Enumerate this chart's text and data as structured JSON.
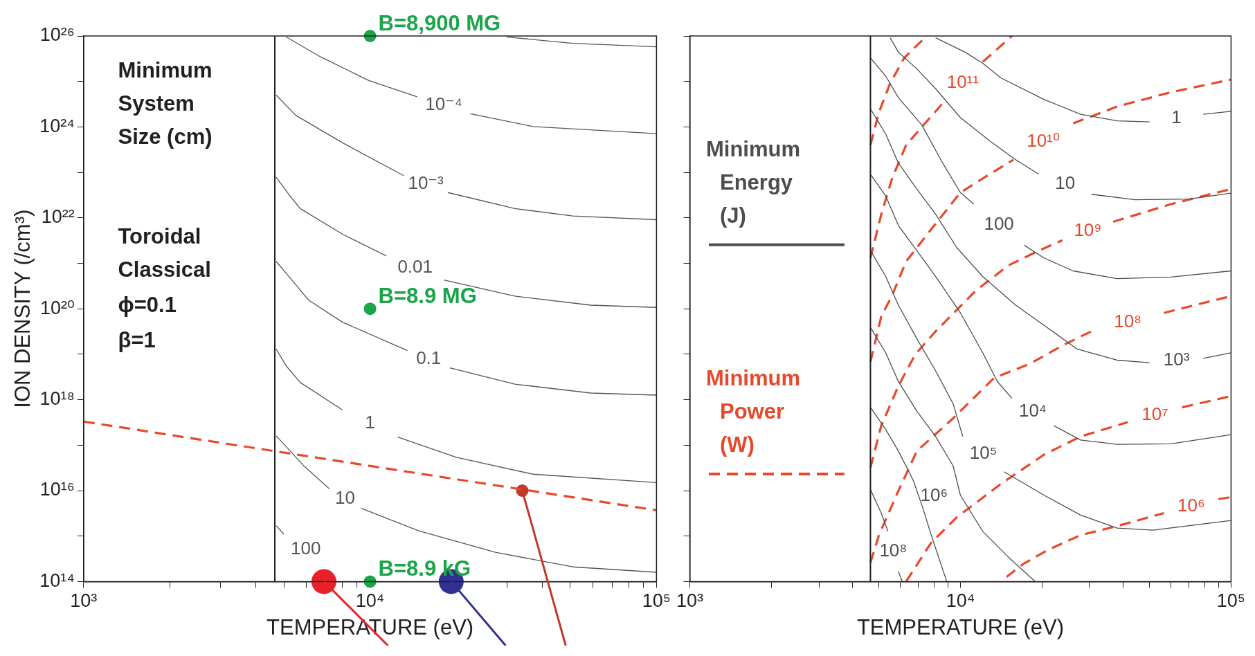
{
  "chart_data": [
    {
      "type": "line",
      "xlabel": "TEMPERATURE (eV)",
      "ylabel": "ION DENSITY (/cm³)",
      "log": "xy",
      "grid": false,
      "marker": "none",
      "xlim": [
        1000,
        100000
      ],
      "ylim": [
        100000000000000.0,
        1e+26
      ],
      "xticks": [
        {
          "value": 1000,
          "label": "10³"
        },
        {
          "value": 2000,
          "label": null
        },
        {
          "value": 3000,
          "label": null
        },
        {
          "value": 4000,
          "label": null
        },
        {
          "value": 5000,
          "label": null
        },
        {
          "value": 6000,
          "label": null
        },
        {
          "value": 7000,
          "label": null
        },
        {
          "value": 8000,
          "label": null
        },
        {
          "value": 9000,
          "label": null
        },
        {
          "value": 10000,
          "label": "10⁴"
        },
        {
          "value": 20000,
          "label": null
        },
        {
          "value": 30000,
          "label": null
        },
        {
          "value": 40000,
          "label": null
        },
        {
          "value": 50000,
          "label": null
        },
        {
          "value": 60000,
          "label": null
        },
        {
          "value": 70000,
          "label": null
        },
        {
          "value": 80000,
          "label": null
        },
        {
          "value": 90000,
          "label": null
        },
        {
          "value": 100000,
          "label": "10⁵"
        }
      ],
      "yticks": [
        {
          "value": 100000000000000.0,
          "label": "10¹⁴"
        },
        {
          "value": 1000000000000000.0,
          "label": null
        },
        {
          "value": 1e+16,
          "label": "10¹⁶"
        },
        {
          "value": 1e+17,
          "label": null
        },
        {
          "value": 1e+18,
          "label": "10¹⁸"
        },
        {
          "value": 1e+19,
          "label": null
        },
        {
          "value": 1e+20,
          "label": "10²⁰"
        },
        {
          "value": 1e+21,
          "label": null
        },
        {
          "value": 1e+22,
          "label": "10²²"
        },
        {
          "value": 1e+23,
          "label": null
        },
        {
          "value": 1e+24,
          "label": "10²⁴"
        },
        {
          "value": 1e+25,
          "label": null
        },
        {
          "value": 1e+26,
          "label": "10²⁶"
        }
      ],
      "ref_lines": [
        {
          "axis": "x",
          "value": 4650,
          "color": "#231f20"
        }
      ],
      "series": [
        {
          "color": "#555555",
          "x": [
            30000,
            51000,
            100000
          ],
          "values": [
            9.5e+25,
            6.9e+25,
            5.8e+25
          ]
        },
        {
          "color": "#555555",
          "x": [
            5100,
            6700,
            9900,
            14600,
            18000,
            22400,
            37000,
            100000
          ],
          "values": [
            9.5e+25,
            3.5e+25,
            1.05e+25,
            4.6e+24,
            null,
            1.95e+24,
            1.02e+24,
            7.1e+23
          ]
        },
        {
          "color": "#555555",
          "x": [
            4700,
            5500,
            8000,
            13100,
            15000,
            18700,
            32000,
            51000,
            100000
          ],
          "values": [
            5e+24,
            1.8e+24,
            4.5e+23,
            8.5e+22,
            null,
            3.6e+22,
            1.6e+22,
            1.1e+22,
            9.1e+21
          ]
        },
        {
          "color": "#555555",
          "x": [
            4700,
            5200,
            5700,
            8000,
            11400,
            14300,
            18100,
            32000,
            59000,
            100000
          ],
          "values": [
            7.8e+22,
            3.3e+22,
            1.6e+22,
            4.4e+21,
            1.45e+21,
            null,
            4.3e+20,
            1.9e+20,
            1.2e+20,
            1.07e+20
          ]
        },
        {
          "color": "#555555",
          "x": [
            4700,
            5400,
            6100,
            8000,
            13500,
            16000,
            19000,
            32000,
            59000,
            100000
          ],
          "values": [
            1.1e+21,
            3.9e+20,
            1.55e+20,
            5.1e+19,
            1.2e+19,
            null,
            5e+18,
            2.2e+18,
            1.4e+18,
            1.26e+18
          ]
        },
        {
          "color": "#555555",
          "x": [
            4700,
            5100,
            5700,
            8000,
            10000,
            12500,
            20000,
            37000,
            100000
          ],
          "values": [
            1.3e+19,
            5.5e+18,
            2.4e+18,
            6e+17,
            null,
            1.5e+17,
            5.4e+16,
            2.3e+16,
            1.5e+16
          ]
        },
        {
          "color": "#555555",
          "x": [
            4700,
            5300,
            5900,
            7200,
            8200,
            9300,
            14800,
            27400,
            51000,
            100000
          ],
          "values": [
            1.6e+17,
            7.1e+16,
            3.4e+16,
            1.1e+16,
            null,
            4100000000000000.0,
            1300000000000000.0,
            440000000000000.0,
            210000000000000.0,
            160000000000000.0
          ]
        },
        {
          "color": "#555555",
          "x": [
            4700,
            5000
          ],
          "values": [
            1700000000000000.0,
            1100000000000000.0
          ]
        },
        {
          "color": "#e8482a",
          "line_style": "dashed",
          "x": [
            1000,
            100000
          ],
          "values": [
            3.3e+17,
            3700000000000000.0
          ]
        },
        {
          "type": "scatter",
          "marker": "circle",
          "color": "#1aa54a",
          "x": [
            10000,
            10000,
            10000
          ],
          "values": [
            1e+26,
            1e+20,
            100000000000000.0
          ]
        },
        {
          "type": "scatter",
          "marker": "circle",
          "color": "#e8202a",
          "x": [
            6900
          ],
          "values": [
            100000000000000.0
          ]
        },
        {
          "type": "scatter",
          "marker": "circle",
          "color": "#2e3192",
          "x": [
            19200
          ],
          "values": [
            100000000000000.0
          ]
        },
        {
          "type": "scatter",
          "marker": "circle",
          "color": "#c0392b",
          "x": [
            34000
          ],
          "values": [
            1e+16
          ]
        }
      ],
      "annotations": [
        "Minimum System Size (cm)",
        "Toroidal Classical",
        "ϕ=0.1",
        "β=1",
        {
          "text": "B=8,900 MG",
          "x": 10000,
          "y": 1e+26
        },
        {
          "text": "B=8.9 MG",
          "x": 10000,
          "y": 1e+20
        },
        {
          "text": "B=8.9 kG",
          "x": 10000,
          "y": 100000000000000.0
        },
        {
          "text": "10⁻⁴",
          "x": 14600,
          "y": 4.6e+24
        },
        {
          "text": "10⁻³",
          "x": 13100,
          "y": 8.5e+22
        },
        {
          "text": "0.01",
          "x": 11400,
          "y": 1.45e+21
        },
        {
          "text": "0.1",
          "x": 13500,
          "y": 1.2e+19
        },
        {
          "text": "1",
          "x": 8000,
          "y": 6e+17
        },
        {
          "text": "10",
          "x": 7200,
          "y": 1.1e+16
        },
        {
          "text": "100",
          "x": 5000,
          "y": 1100000000000000.0
        }
      ]
    },
    {
      "type": "line",
      "xlabel": "TEMPERATURE (eV)",
      "log": "xy",
      "grid": false,
      "marker": "none",
      "tick_labels": "x",
      "legend": "left",
      "xlim": [
        1000,
        100000
      ],
      "ylim": [
        100000000000000.0,
        1e+26
      ],
      "xticks": [
        {
          "value": 1000,
          "label": "10³"
        },
        {
          "value": 2000,
          "label": null
        },
        {
          "value": 3000,
          "label": null
        },
        {
          "value": 4000,
          "label": null
        },
        {
          "value": 5000,
          "label": null
        },
        {
          "value": 6000,
          "label": null
        },
        {
          "value": 7000,
          "label": null
        },
        {
          "value": 8000,
          "label": null
        },
        {
          "value": 9000,
          "label": null
        },
        {
          "value": 10000,
          "label": "10⁴"
        },
        {
          "value": 20000,
          "label": null
        },
        {
          "value": 30000,
          "label": null
        },
        {
          "value": 40000,
          "label": null
        },
        {
          "value": 50000,
          "label": null
        },
        {
          "value": 60000,
          "label": null
        },
        {
          "value": 70000,
          "label": null
        },
        {
          "value": 80000,
          "label": null
        },
        {
          "value": 90000,
          "label": null
        },
        {
          "value": 100000,
          "label": "10⁵"
        }
      ],
      "yticks": [
        {
          "value": 100000000000000.0,
          "label": null
        },
        {
          "value": 1000000000000000.0,
          "label": null
        },
        {
          "value": 1e+16,
          "label": null
        },
        {
          "value": 1e+17,
          "label": null
        },
        {
          "value": 1e+18,
          "label": null
        },
        {
          "value": 1e+19,
          "label": null
        },
        {
          "value": 1e+20,
          "label": null
        },
        {
          "value": 1e+21,
          "label": null
        },
        {
          "value": 1e+22,
          "label": null
        },
        {
          "value": 1e+23,
          "label": null
        },
        {
          "value": 1e+24,
          "label": null
        },
        {
          "value": 1e+25,
          "label": null
        },
        {
          "value": 1e+26,
          "label": null
        }
      ],
      "ref_lines": [
        {
          "axis": "x",
          "value": 4650,
          "color": "#231f20"
        }
      ],
      "series": [
        {
          "name": "Minimum Energy (J)",
          "color": "#4d4d4d",
          "x": [
            8100,
            10400,
            12100,
            14100,
            20400,
            27800,
            37900,
            50000,
            63000,
            79000,
            100000
          ],
          "values": [
            9.1e+25,
            4.4e+25,
            2.5e+25,
            1.2e+25,
            4e+24,
            1.9e+24,
            1.36e+24,
            1.29e+24,
            null,
            1.9e+24,
            2.2e+24
          ]
        },
        {
          "color": "#4d4d4d",
          "x": [
            5500,
            5900,
            6900,
            8100,
            10000,
            12900,
            16000,
            19500,
            23100,
            30500,
            44200,
            70000,
            100000
          ],
          "values": [
            9.1e+25,
            4.4e+25,
            1.9e+25,
            6.9e+24,
            1.6e+24,
            4.8e+23,
            1.9e+23,
            9.1e+22,
            null,
            3.3e+22,
            2.5e+22,
            2.6e+22,
            3.5e+22
          ]
        },
        {
          "color": "#4d4d4d",
          "x": [
            4650,
            5300,
            5900,
            7200,
            8600,
            10000,
            11200,
            13500,
            17200,
            20400,
            26100,
            37900,
            60000,
            100000
          ],
          "values": [
            3.3e+25,
            1.3e+25,
            4.4e+24,
            1.1e+24,
            1.6e+23,
            3.6e+22,
            2e+22,
            null,
            2.5e+21,
            1.3e+21,
            6.8e+20,
            4.6e+20,
            5e+20,
            6.8e+20
          ]
        },
        {
          "color": "#4d4d4d",
          "x": [
            4650,
            5300,
            5900,
            6900,
            8100,
            9700,
            12100,
            16000,
            20400,
            27000,
            37900,
            50000,
            63000,
            79000,
            100000
          ],
          "values": [
            2.5e+24,
            6.9e+23,
            1.6e+23,
            4.3e+22,
            1.2e+22,
            2.2e+21,
            5.1e+20,
            1.2e+20,
            4.3e+19,
            1.3e+19,
            7.4e+18,
            6.5e+18,
            null,
            8.1e+18,
            1.07e+19
          ]
        },
        {
          "color": "#4d4d4d",
          "x": [
            4650,
            5300,
            5900,
            6900,
            8100,
            10000,
            12100,
            13700,
            15500,
            19500,
            22100,
            27800,
            37900,
            60000,
            100000
          ],
          "values": [
            9.1e+22,
            3e+22,
            6.8e+21,
            1.9e+21,
            5.1e+20,
            8.1e+19,
            1.07e+19,
            2.5e+18,
            1.07e+18,
            null,
            2.7e+17,
            1.3e+17,
            1.04e+17,
            1.07e+17,
            1.7e+17
          ]
        },
        {
          "color": "#4d4d4d",
          "x": [
            4650,
            5300,
            5900,
            6900,
            8100,
            9400,
            10200,
            12500,
            14500,
            20400,
            27800,
            37900,
            51500,
            100000
          ],
          "values": [
            1.9e+21,
            5.1e+20,
            1.2e+20,
            2.2e+19,
            4.3e+18,
            8.1e+17,
            1.55e+17,
            null,
            2.6e+16,
            7900000000000000.0,
            2900000000000000.0,
            1500000000000000.0,
            1350000000000000.0,
            2200000000000000.0
          ]
        },
        {
          "color": "#4d4d4d",
          "x": [
            4650,
            5300,
            5900,
            6900,
            8100,
            9400,
            10000,
            12100,
            15000,
            18900
          ],
          "values": [
            3.9e+19,
            1.07e+19,
            2.5e+18,
            5.6e+17,
            1.55e+17,
            3.5e+16,
            7900000000000000.0,
            1260000000000000.0,
            350000000000000.0,
            100000000000000.0
          ]
        },
        {
          "color": "#4d4d4d",
          "x": [
            4650,
            5300,
            5900,
            6700,
            7300,
            7800,
            8900
          ],
          "values": [
            6.8e+17,
            2.2e+17,
            7.4e+16,
            1.66e+16,
            3800000000000000.0,
            1050000000000000.0,
            100000000000000.0
          ]
        },
        {
          "color": "#4d4d4d",
          "x": [
            4650,
            5100,
            5400,
            5700,
            5900,
            6100
          ],
          "values": [
            1.05e+16,
            3200000000000000.0,
            1260000000000000.0,
            null,
            166000000000000.0,
            100000000000000.0
          ]
        },
        {
          "name": "Minimum Power (W)",
          "color": "#e8482a",
          "line_style": "dashed",
          "x": [
            4650,
            5000,
            5500,
            6200,
            7500
          ],
          "values": [
            4e+23,
            2.1e+24,
            9.1e+24,
            3.3e+25,
            1e+26
          ]
        },
        {
          "color": "#e8482a",
          "line_style": "dashed",
          "x": [
            4650,
            5100,
            5600,
            6300,
            7400,
            8600,
            10900,
            12100,
            15500
          ],
          "values": [
            1.3e+21,
            1.2e+22,
            7.6e+22,
            4e+23,
            1.2e+24,
            3.3e+24,
            null,
            2.7e+25,
            1e+26
          ]
        },
        {
          "color": "#e8482a",
          "line_style": "dashed",
          "x": [
            4650,
            5100,
            5600,
            6300,
            7800,
            10000,
            12500,
            15700,
            20700,
            26100,
            37900,
            60000,
            100000
          ],
          "values": [
            6.8e+18,
            6.8e+19,
            2e+20,
            1.1e+21,
            5.6e+21,
            3.6e+22,
            8.3e+22,
            1.9e+23,
            null,
            1.2e+24,
            2.8e+24,
            5.8e+24,
            1.1e+25
          ]
        },
        {
          "color": "#e8482a",
          "line_style": "dashed",
          "x": [
            4650,
            5100,
            5900,
            6800,
            8100,
            11400,
            15000,
            19500,
            23800,
            27800,
            36700,
            60000,
            100000
          ],
          "values": [
            3.2e+16,
            2.7e+17,
            2e+18,
            9.8e+18,
            3.2e+19,
            2.5e+20,
            8.9e+20,
            1.9e+21,
            3.2e+21,
            null,
            8.2e+21,
            2e+22,
            4.3e+22
          ]
        },
        {
          "color": "#e8482a",
          "line_style": "dashed",
          "x": [
            4650,
            5000,
            5800,
            6900,
            9400,
            13300,
            18100,
            23800,
            30500,
            42800,
            56500,
            100000
          ],
          "values": [
            260000000000000.0,
            1050000000000000.0,
            7900000000000000.0,
            7.4e+16,
            3.9e+17,
            3e+18,
            6.2e+18,
            1.55e+19,
            3.2e+19,
            null,
            8.1e+19,
            1.9e+20
          ]
        },
        {
          "color": "#e8482a",
          "line_style": "dashed",
          "x": [
            6300,
            7800,
            9700,
            14100,
            20400,
            27800,
            41500,
            50000,
            66000,
            100000
          ],
          "values": [
            100000000000000.0,
            720000000000000.0,
            2600000000000000.0,
            1.4e+16,
            6.2e+16,
            1.55e+17,
            3.2e+17,
            null,
            6.8e+17,
            1.2e+18
          ]
        },
        {
          "color": "#e8482a",
          "line_style": "dashed",
          "x": [
            14800,
            17000,
            21100,
            27800,
            37900,
            56500,
            68000,
            89800,
            100000
          ],
          "values": [
            126000000000000.0,
            240000000000000.0,
            500000000000000.0,
            1050000000000000.0,
            1660000000000000.0,
            3200000000000000.0,
            null,
            6500000000000000.0,
            7200000000000000.0
          ]
        }
      ],
      "annotations": [
        {
          "text": "10¹¹",
          "x": 8600,
          "y": 3.3e+24
        },
        {
          "text": "10¹⁰",
          "x": 15700,
          "y": 1.9e+23
        },
        {
          "text": "10⁹",
          "x": 23800,
          "y": 3.2e+21
        },
        {
          "text": "10⁸",
          "x": 30500,
          "y": 3.2e+19
        },
        {
          "text": "10⁷",
          "x": 41500,
          "y": 3.2e+17
        },
        {
          "text": "10⁶",
          "x": 56500,
          "y": 3200000000000000.0
        },
        {
          "text": "1",
          "x": 50000,
          "y": 1.29e+24
        },
        {
          "text": "10",
          "x": 19500,
          "y": 9.1e+22
        },
        {
          "text": "100",
          "x": 11200,
          "y": 2e+22
        },
        {
          "text": "10³",
          "x": 50000,
          "y": 6.5e+18
        },
        {
          "text": "10⁴",
          "x": 15500,
          "y": 1.07e+18
        },
        {
          "text": "10⁵",
          "x": 10200,
          "y": 1.55e+17
        },
        {
          "text": "10⁶",
          "x": 6700,
          "y": 1.66e+16
        },
        {
          "text": "10⁸",
          "x": 5400,
          "y": 1260000000000000.0
        }
      ]
    }
  ]
}
